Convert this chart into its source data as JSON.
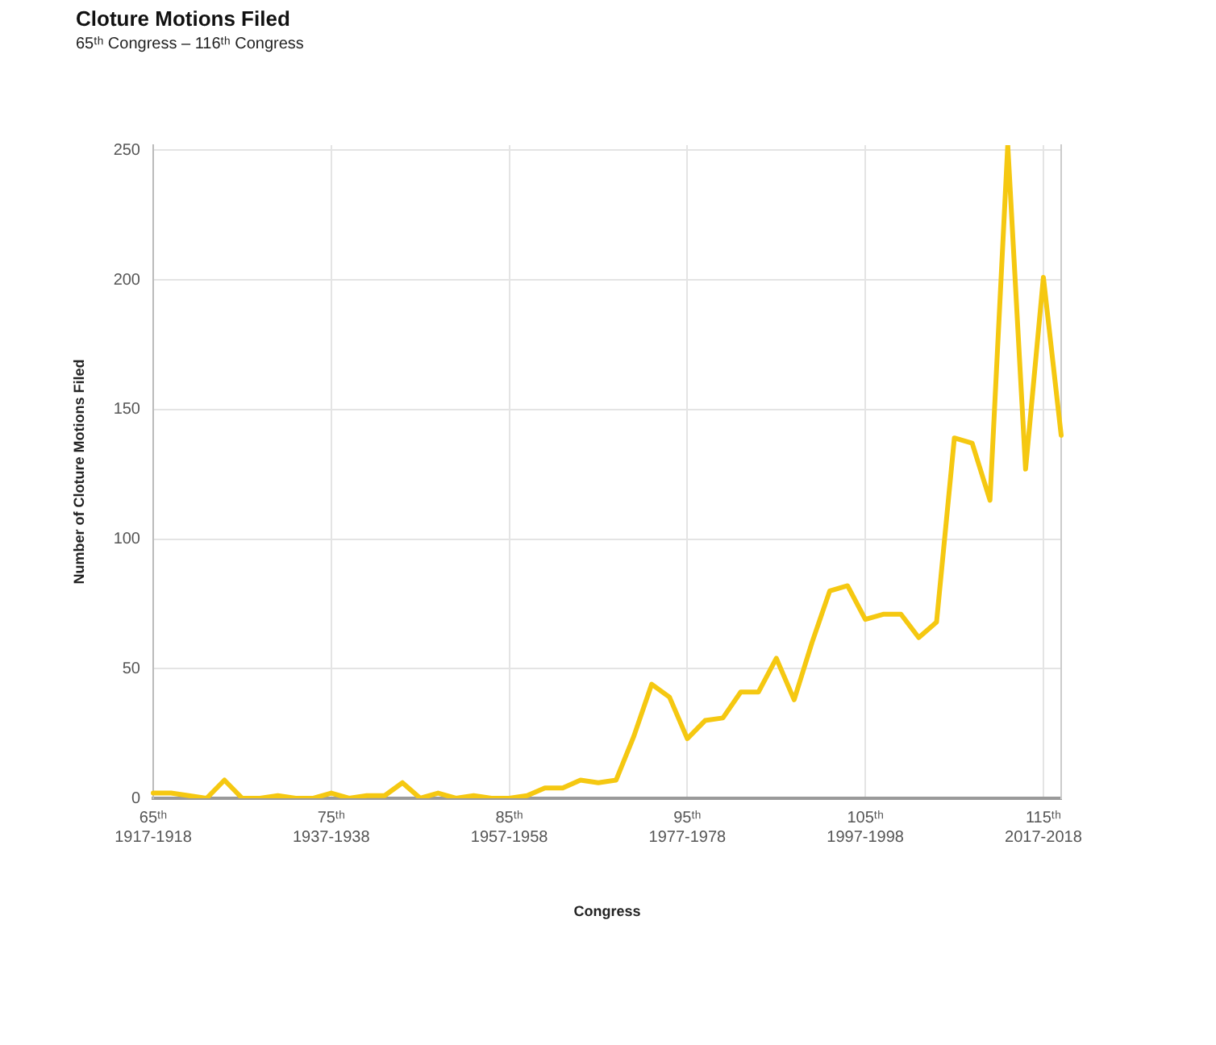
{
  "chart_data": {
    "type": "line",
    "title": "Cloture Motions Filed",
    "subtitle": "65ᵗʰ Congress – 116ᵗʰ Congress",
    "xlabel": "Congress",
    "ylabel": "Number of Cloture Motions Filed",
    "categories": [
      "65ᵗʰ\n1917-1918",
      null,
      null,
      null,
      null,
      null,
      null,
      null,
      null,
      null,
      "75ᵗʰ\n1937-1938",
      null,
      null,
      null,
      null,
      null,
      null,
      null,
      null,
      null,
      "85ᵗʰ\n1957-1958",
      null,
      null,
      null,
      null,
      null,
      null,
      null,
      null,
      null,
      "95ᵗʰ\n1977-1978",
      null,
      null,
      null,
      null,
      null,
      null,
      null,
      null,
      null,
      "105ᵗʰ\n1997-1998",
      null,
      null,
      null,
      null,
      null,
      null,
      null,
      null,
      null,
      "115ᵗʰ\n2017-2018",
      null
    ],
    "series": [
      {
        "color": "#f5c811",
        "values": [
          2,
          2,
          1,
          0,
          7,
          0,
          0,
          1,
          0,
          0,
          2,
          0,
          1,
          1,
          6,
          0,
          2,
          0,
          1,
          0,
          0,
          1,
          4,
          4,
          7,
          6,
          7,
          24,
          44,
          39,
          23,
          30,
          31,
          41,
          41,
          54,
          38,
          60,
          80,
          82,
          69,
          71,
          71,
          62,
          68,
          139,
          137,
          115,
          252,
          127,
          201,
          140
        ]
      }
    ],
    "ylim": [
      0,
      252
    ],
    "yticks": [
      0,
      50,
      100,
      150,
      200,
      250
    ],
    "grid": true,
    "marker": "none",
    "line_style": "solid"
  }
}
